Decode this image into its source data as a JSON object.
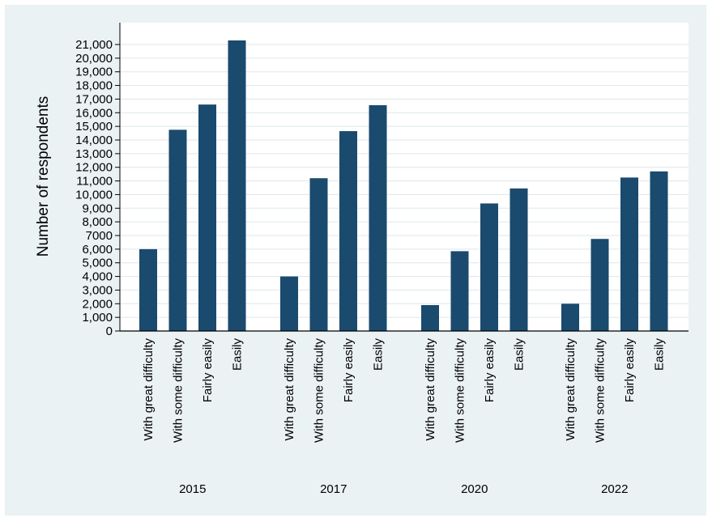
{
  "chart_data": {
    "type": "bar",
    "ylabel": "Number of respondents",
    "xlabel": "",
    "title": "",
    "ylim": [
      0,
      21000
    ],
    "yticks": [
      0,
      1000,
      2000,
      3000,
      4000,
      5000,
      6000,
      7000,
      8000,
      9000,
      10000,
      11000,
      12000,
      13000,
      14000,
      15000,
      16000,
      17000,
      18000,
      19000,
      20000,
      21000
    ],
    "ytick_labels": [
      "0",
      "1,000",
      "2,000",
      "3,000",
      "4,000",
      "5,000",
      "6,000",
      "7000",
      "8,000",
      "9,000",
      "10,000",
      "11,000",
      "12,000",
      "13,000",
      "14,000",
      "15,000",
      "16,000",
      "17,000",
      "18,000",
      "19,000",
      "20,000",
      "21,000"
    ],
    "grid": true,
    "legend": "none",
    "bar_color": "#1a4a6e",
    "groups": [
      {
        "year": "2015",
        "categories": [
          "With great difficulty",
          "With some difficulty",
          "Fairly easily",
          "Easily"
        ],
        "values": [
          6000,
          14750,
          16600,
          21300
        ]
      },
      {
        "year": "2017",
        "categories": [
          "With great difficulty",
          "With some difficulty",
          "Fairly easily",
          "Easily"
        ],
        "values": [
          4000,
          11200,
          14650,
          16550
        ]
      },
      {
        "year": "2020",
        "categories": [
          "With great difficulty",
          "With some difficulty",
          "Fairly easily",
          "Easily"
        ],
        "values": [
          1900,
          5850,
          9350,
          10450
        ]
      },
      {
        "year": "2022",
        "categories": [
          "With great difficulty",
          "With some difficulty",
          "Fairly easily",
          "Easily"
        ],
        "values": [
          2000,
          6750,
          11250,
          11700
        ]
      }
    ]
  }
}
